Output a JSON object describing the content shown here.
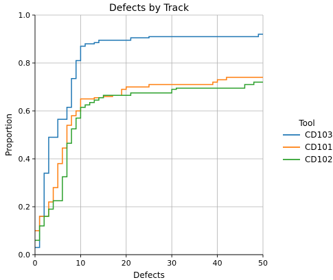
{
  "chart_data": {
    "type": "line",
    "step": true,
    "title": "Defects by Track",
    "xlabel": "Defects",
    "ylabel": "Proportion",
    "xlim": [
      0,
      50
    ],
    "ylim": [
      0,
      1.0
    ],
    "x_ticks": [
      0,
      10,
      20,
      30,
      40,
      50
    ],
    "x_tick_labels": [
      "0",
      "10",
      "20",
      "30",
      "40",
      "50"
    ],
    "y_ticks": [
      0.0,
      0.2,
      0.4,
      0.6,
      0.8,
      1.0
    ],
    "y_tick_labels": [
      "0.0",
      "0.2",
      "0.4",
      "0.6",
      "0.8",
      "1.0"
    ],
    "grid": true,
    "legend": {
      "title": "Tool",
      "placement": "right-outside"
    },
    "series": [
      {
        "name": "CD103",
        "color": "#1f77b4",
        "points": [
          [
            0,
            0.03
          ],
          [
            1,
            0.16
          ],
          [
            2,
            0.34
          ],
          [
            3,
            0.49
          ],
          [
            5,
            0.565
          ],
          [
            7,
            0.615
          ],
          [
            8,
            0.735
          ],
          [
            9,
            0.81
          ],
          [
            10,
            0.87
          ],
          [
            11,
            0.88
          ],
          [
            13,
            0.885
          ],
          [
            14,
            0.895
          ],
          [
            21,
            0.905
          ],
          [
            25,
            0.91
          ],
          [
            49,
            0.92
          ],
          [
            50,
            0.92
          ]
        ]
      },
      {
        "name": "CD101",
        "color": "#ff7f0e",
        "points": [
          [
            0,
            0.1
          ],
          [
            1,
            0.16
          ],
          [
            3,
            0.22
          ],
          [
            4,
            0.28
          ],
          [
            5,
            0.38
          ],
          [
            6,
            0.445
          ],
          [
            7,
            0.54
          ],
          [
            8,
            0.58
          ],
          [
            9,
            0.6
          ],
          [
            10,
            0.65
          ],
          [
            13,
            0.655
          ],
          [
            15,
            0.66
          ],
          [
            17,
            0.665
          ],
          [
            19,
            0.69
          ],
          [
            20,
            0.7
          ],
          [
            25,
            0.71
          ],
          [
            39,
            0.72
          ],
          [
            40,
            0.73
          ],
          [
            42,
            0.74
          ],
          [
            50,
            0.74
          ]
        ]
      },
      {
        "name": "CD102",
        "color": "#2ca02c",
        "points": [
          [
            0,
            0.06
          ],
          [
            1,
            0.12
          ],
          [
            2,
            0.16
          ],
          [
            3,
            0.19
          ],
          [
            4,
            0.225
          ],
          [
            6,
            0.325
          ],
          [
            7,
            0.465
          ],
          [
            8,
            0.525
          ],
          [
            9,
            0.57
          ],
          [
            10,
            0.615
          ],
          [
            11,
            0.625
          ],
          [
            12,
            0.635
          ],
          [
            13,
            0.645
          ],
          [
            14,
            0.655
          ],
          [
            15,
            0.665
          ],
          [
            21,
            0.675
          ],
          [
            30,
            0.69
          ],
          [
            31,
            0.695
          ],
          [
            46,
            0.71
          ],
          [
            48,
            0.72
          ],
          [
            50,
            0.72
          ]
        ]
      }
    ]
  }
}
